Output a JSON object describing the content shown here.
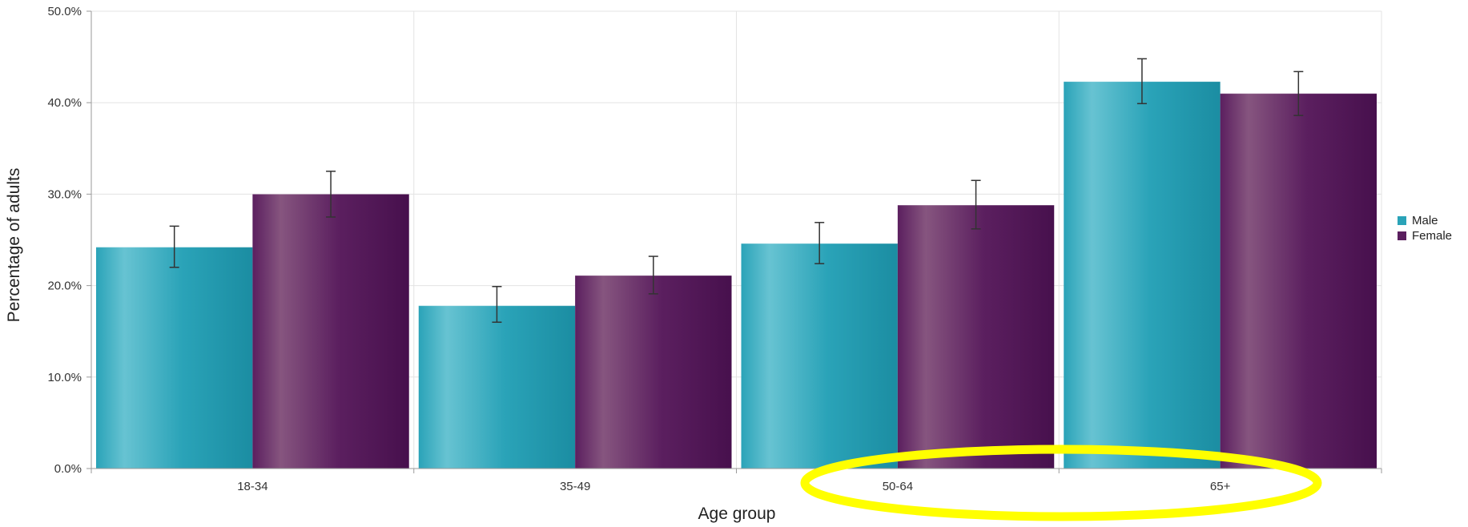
{
  "chart_data": {
    "type": "bar",
    "title": "",
    "xlabel": "Age group",
    "ylabel": "Percentage of adults",
    "categories": [
      "18-34",
      "35-49",
      "50-64",
      "65+"
    ],
    "series": [
      {
        "name": "Male",
        "color": "#2aa3b8",
        "values": [
          24.2,
          17.8,
          24.6,
          42.3
        ],
        "error_low": [
          22.0,
          16.0,
          22.4,
          39.9
        ],
        "error_high": [
          26.5,
          19.9,
          26.9,
          44.8
        ]
      },
      {
        "name": "Female",
        "color": "#5b1f5f",
        "values": [
          30.0,
          21.1,
          28.8,
          41.0
        ],
        "error_low": [
          27.5,
          19.1,
          26.2,
          38.6
        ],
        "error_high": [
          32.5,
          23.2,
          31.5,
          43.4
        ]
      }
    ],
    "ylim": [
      0,
      50
    ],
    "yticks": [
      0,
      10,
      20,
      30,
      40,
      50
    ],
    "ytick_labels": [
      "0.0%",
      "10.0%",
      "20.0%",
      "30.0%",
      "40.0%",
      "50.0%"
    ],
    "grid": true,
    "legend_position": "right",
    "annotation": {
      "shape": "ellipse",
      "color": "#ffff00",
      "highlights": "50-64"
    }
  }
}
